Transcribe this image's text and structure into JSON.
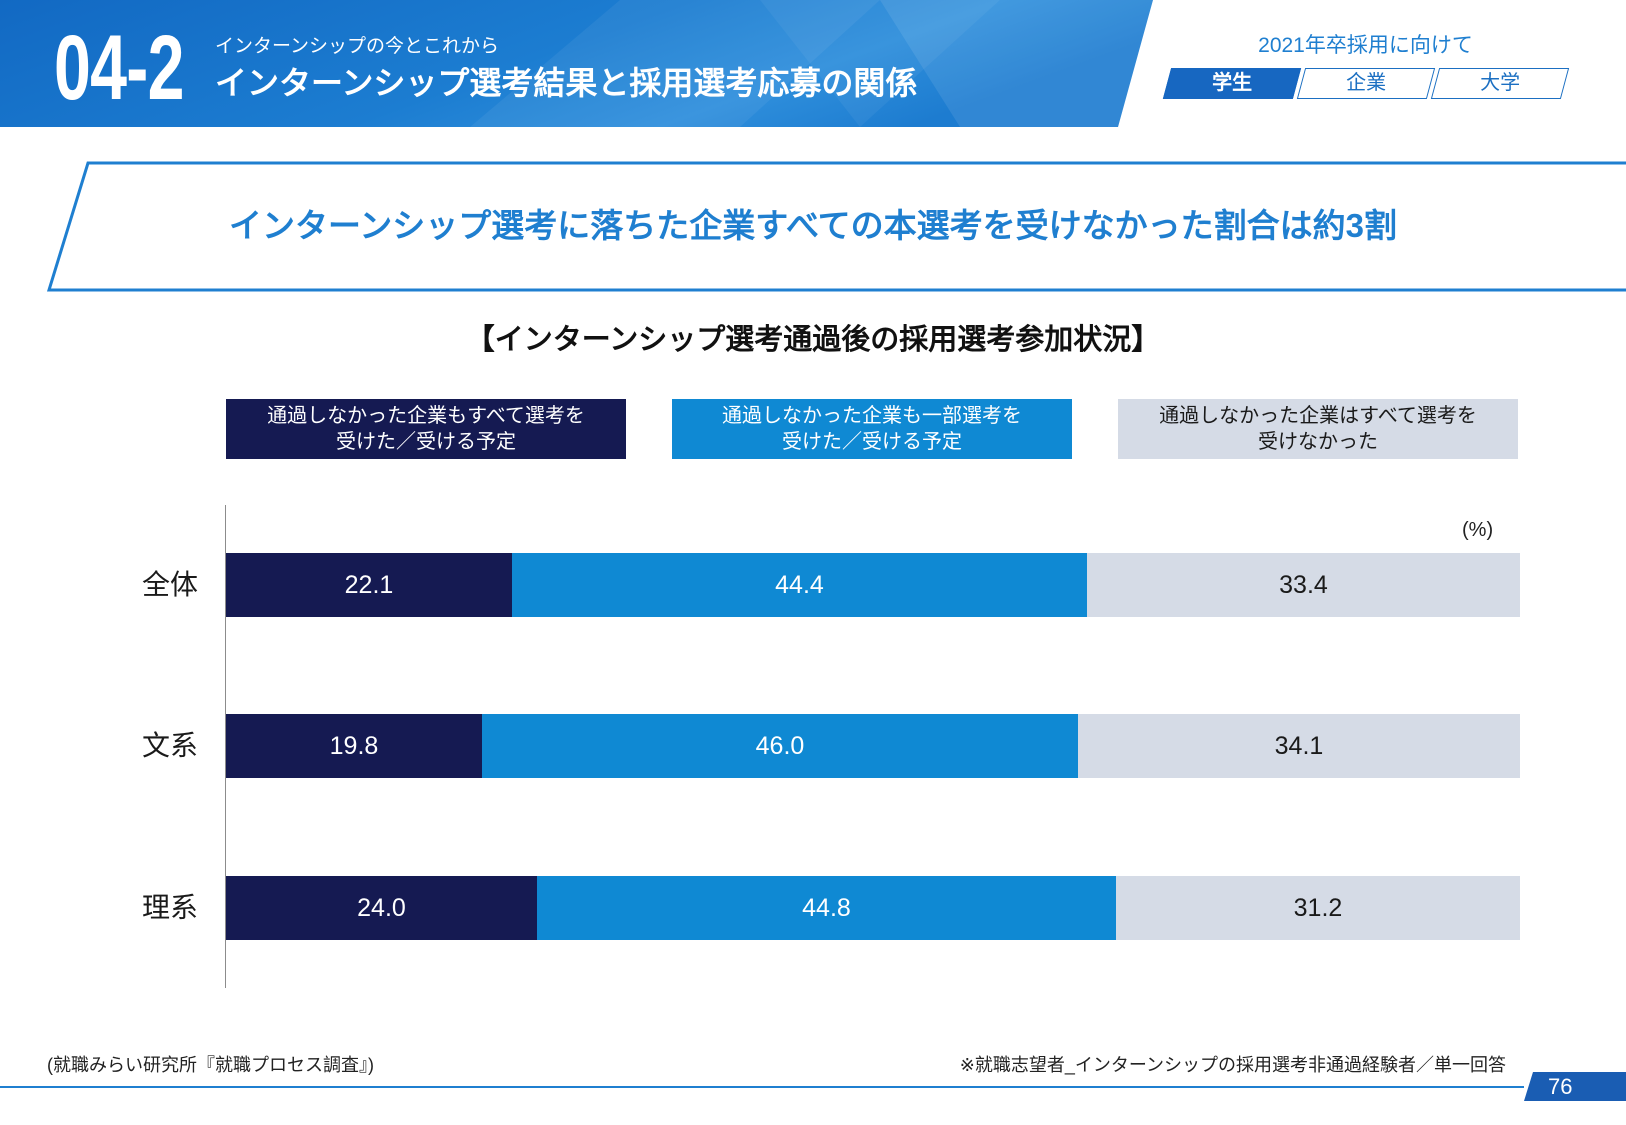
{
  "header": {
    "section_number": "04-2",
    "section_name": "インターンシップの今とこれから",
    "page_title": "インターンシップ選考結果と採用選考応募の関係",
    "target_label": "2021年卒採用に向けて",
    "tabs": [
      {
        "label": "学生",
        "active": true
      },
      {
        "label": "企業",
        "active": false
      },
      {
        "label": "大学",
        "active": false
      }
    ]
  },
  "headline": "インターンシップ選考に落ちた企業すべての本選考を受けなかった割合は約3割",
  "chart_data": {
    "type": "bar",
    "orientation": "horizontal",
    "stacked": true,
    "title": "【インターンシップ選考通過後の採用選考参加状況】",
    "unit": "(%)",
    "categories": [
      "全体",
      "文系",
      "理系"
    ],
    "series": [
      {
        "label_lines": [
          "通過しなかった企業もすべて選考を",
          "受けた／受ける予定"
        ],
        "color": "#151a52",
        "text_color": "#ffffff",
        "values": [
          22.1,
          19.8,
          24.0
        ]
      },
      {
        "label_lines": [
          "通過しなかった企業も一部選考を",
          "受けた／受ける予定"
        ],
        "color": "#0f89d3",
        "text_color": "#ffffff",
        "values": [
          44.4,
          46.0,
          44.8
        ]
      },
      {
        "label_lines": [
          "通過しなかった企業はすべて選考を",
          "受けなかった"
        ],
        "color": "#d5dbe6",
        "text_color": "#1a1a1a",
        "values": [
          33.4,
          34.1,
          31.2
        ]
      }
    ],
    "xlim": [
      0,
      100
    ],
    "grid": false,
    "legend_position": "top"
  },
  "footer": {
    "source": "(就職みらい研究所『就職プロセス調査』)",
    "note": "※就職志望者_インターンシップの採用選考非通過経験者／単一回答",
    "page_number": "76"
  },
  "colors": {
    "brand_blue": "#1f7fd0",
    "tab_active": "#1767c1",
    "page_number_bg": "#1a5db3"
  }
}
